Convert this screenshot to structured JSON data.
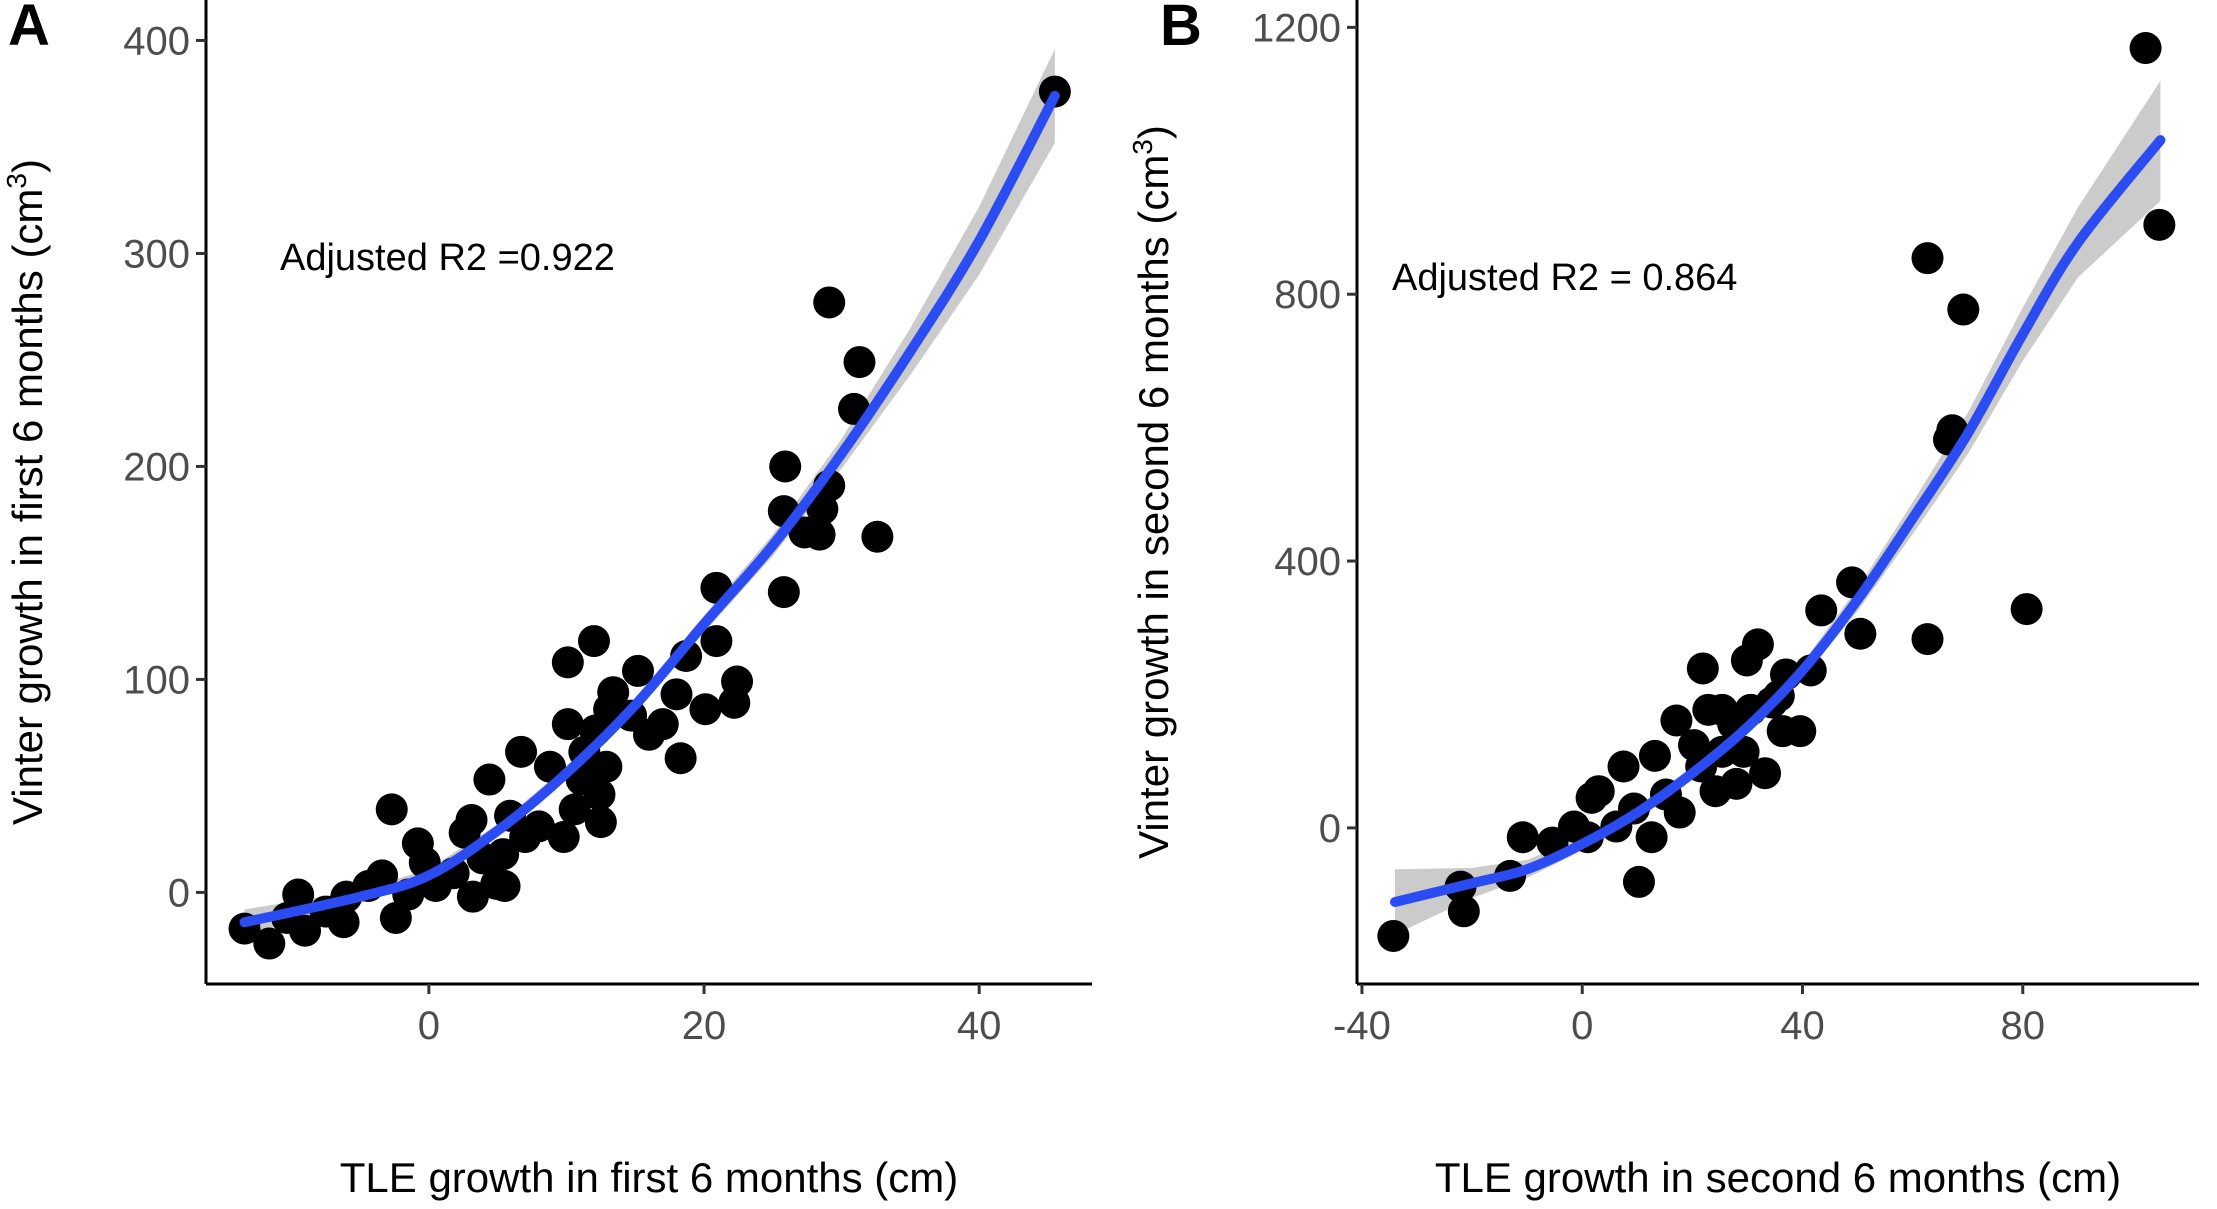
{
  "chart_data": [
    {
      "type": "scatter",
      "panel_label": "A",
      "xlabel": "TLE growth in first 6 months (cm)",
      "ylabel": "Vinter growth in first 6 months (cm",
      "ylabel_sup": "3",
      "ylabel_end": ")",
      "annotation": "Adjusted R2 =0.922",
      "xlim": [
        -16.2,
        48.2
      ],
      "ylim": [
        -43,
        419
      ],
      "xticks": [
        0,
        20,
        40
      ],
      "yticks": [
        0,
        100,
        200,
        300,
        400
      ],
      "grid": false,
      "point_color": "#000000",
      "fit_color": "#2b4cf2",
      "band_color": "#bebebe",
      "points": [
        [
          -13.4,
          -17
        ],
        [
          -11.6,
          -24
        ],
        [
          -9.5,
          -1
        ],
        [
          -9,
          -18
        ],
        [
          -10.3,
          -12
        ],
        [
          -7.5,
          -9
        ],
        [
          -6.2,
          -14
        ],
        [
          -6,
          -2
        ],
        [
          -4.4,
          3
        ],
        [
          -3.4,
          8
        ],
        [
          -2.7,
          39
        ],
        [
          -2.4,
          -12
        ],
        [
          -1.5,
          -1
        ],
        [
          -0.8,
          23
        ],
        [
          -0.3,
          14
        ],
        [
          0.5,
          3
        ],
        [
          1.8,
          9
        ],
        [
          2.6,
          28
        ],
        [
          3.1,
          34
        ],
        [
          3.2,
          -2
        ],
        [
          3.9,
          16
        ],
        [
          4.4,
          53
        ],
        [
          4.9,
          4
        ],
        [
          5.4,
          18
        ],
        [
          5.5,
          3
        ],
        [
          5.9,
          36
        ],
        [
          6.7,
          66
        ],
        [
          7,
          26
        ],
        [
          8,
          31
        ],
        [
          8.8,
          59
        ],
        [
          9.8,
          26
        ],
        [
          10.1,
          108
        ],
        [
          10.1,
          79
        ],
        [
          10.6,
          39
        ],
        [
          11.1,
          53
        ],
        [
          11.3,
          66
        ],
        [
          12,
          118
        ],
        [
          12.1,
          76
        ],
        [
          12.4,
          46
        ],
        [
          12.5,
          33
        ],
        [
          12.9,
          59
        ],
        [
          13.1,
          86
        ],
        [
          13.4,
          94
        ],
        [
          14.7,
          83
        ],
        [
          15.2,
          104
        ],
        [
          16,
          74
        ],
        [
          17,
          79
        ],
        [
          18,
          93
        ],
        [
          18.3,
          63
        ],
        [
          18.7,
          111
        ],
        [
          20.1,
          86
        ],
        [
          20.9,
          118
        ],
        [
          20.9,
          143
        ],
        [
          22.2,
          89
        ],
        [
          22.4,
          99
        ],
        [
          25.8,
          141
        ],
        [
          25.8,
          179
        ],
        [
          25.9,
          200
        ],
        [
          27.3,
          169
        ],
        [
          28.4,
          168
        ],
        [
          28.6,
          180
        ],
        [
          29.1,
          191
        ],
        [
          29.1,
          277
        ],
        [
          30.9,
          227
        ],
        [
          31.3,
          249
        ],
        [
          32.6,
          167
        ],
        [
          45.5,
          376
        ]
      ],
      "fit": {
        "x": [
          -13.4,
          -5,
          0,
          5,
          10,
          15,
          20,
          25,
          30,
          35,
          40,
          45.5
        ],
        "y": [
          -14,
          -2,
          8,
          29,
          56,
          88,
          126,
          163,
          206,
          254,
          306,
          374
        ],
        "lower": [
          -20,
          -5,
          5,
          26,
          53,
          85,
          122,
          158,
          199,
          243,
          290,
          352
        ],
        "upper": [
          -8,
          1,
          11,
          32,
          59,
          91,
          130,
          168,
          213,
          265,
          322,
          396
        ]
      }
    },
    {
      "type": "scatter",
      "panel_label": "B",
      "xlabel": "TLE growth in second 6 months (cm)",
      "ylabel": "Vinter growth in second 6 months (cm",
      "ylabel_sup": "3",
      "ylabel_end": ")",
      "annotation": "Adjusted R2 = 0.864",
      "xlim": [
        -40.9,
        112
      ],
      "ylim": [
        -234,
        1241
      ],
      "xticks": [
        -40,
        0,
        40,
        80
      ],
      "yticks": [
        0,
        400,
        800,
        1200
      ],
      "grid": false,
      "point_color": "#000000",
      "fit_color": "#2b4cf2",
      "band_color": "#bebebe",
      "points": [
        [
          -34.3,
          -162
        ],
        [
          -22.1,
          -88
        ],
        [
          -21.5,
          -125
        ],
        [
          -13.1,
          -72
        ],
        [
          -10.8,
          -14
        ],
        [
          -5.4,
          -22
        ],
        [
          -1.5,
          2
        ],
        [
          1,
          -14
        ],
        [
          1.7,
          45
        ],
        [
          3,
          55
        ],
        [
          6.2,
          2
        ],
        [
          7.5,
          92
        ],
        [
          9.4,
          29
        ],
        [
          10.3,
          -81
        ],
        [
          12.6,
          -14
        ],
        [
          13.2,
          108
        ],
        [
          15.2,
          50
        ],
        [
          17.1,
          161
        ],
        [
          17.7,
          23
        ],
        [
          20.3,
          124
        ],
        [
          21.6,
          92
        ],
        [
          21.9,
          239
        ],
        [
          22.9,
          177
        ],
        [
          24.2,
          55
        ],
        [
          25.4,
          114
        ],
        [
          25.4,
          177
        ],
        [
          27.4,
          156
        ],
        [
          28,
          66
        ],
        [
          29.3,
          114
        ],
        [
          29.9,
          251
        ],
        [
          30.6,
          177
        ],
        [
          31.9,
          275
        ],
        [
          33.2,
          82
        ],
        [
          34.4,
          188
        ],
        [
          35.7,
          198
        ],
        [
          36.4,
          145
        ],
        [
          37,
          230
        ],
        [
          39.6,
          145
        ],
        [
          41.5,
          236
        ],
        [
          43.4,
          326
        ],
        [
          49,
          368
        ],
        [
          50.5,
          291
        ],
        [
          62.7,
          283
        ],
        [
          62.7,
          854
        ],
        [
          66.6,
          582
        ],
        [
          67.2,
          596
        ],
        [
          69.2,
          777
        ],
        [
          80.7,
          328
        ],
        [
          102.3,
          1169
        ],
        [
          104.8,
          904
        ]
      ],
      "fit": {
        "x": [
          -34,
          -20,
          -10,
          0,
          10,
          20,
          30,
          40,
          50,
          60,
          70,
          80,
          90,
          105
        ],
        "y": [
          -111,
          -83,
          -62,
          -24,
          23,
          82,
          151,
          236,
          342,
          464,
          591,
          740,
          877,
          1031
        ],
        "lower": [
          -160,
          -105,
          -75,
          -34,
          14,
          72,
          140,
          224,
          325,
          440,
          560,
          700,
          825,
          940
        ],
        "upper": [
          -62,
          -60,
          -48,
          -14,
          32,
          92,
          162,
          248,
          359,
          488,
          622,
          780,
          930,
          1120
        ]
      }
    }
  ]
}
